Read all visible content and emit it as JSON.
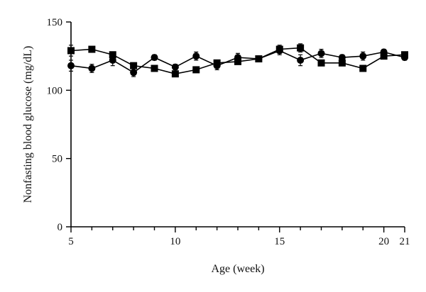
{
  "chart_data": {
    "type": "line",
    "title": "",
    "xlabel": "Age (week)",
    "ylabel": "Nonfasting blood glucose (mg/dL)",
    "xlim": [
      5,
      21
    ],
    "ylim": [
      0,
      150
    ],
    "xticks": [
      5,
      10,
      15,
      20,
      21
    ],
    "yticks": [
      0,
      50,
      100,
      150
    ],
    "grid": false,
    "legend": "none",
    "series": [
      {
        "marker": "square",
        "x": [
          5,
          6,
          7,
          8,
          9,
          10,
          11,
          12,
          13,
          14,
          15,
          16,
          17,
          18,
          19,
          20,
          21
        ],
        "y": [
          129,
          130,
          126,
          118,
          116,
          112,
          115,
          120,
          121,
          123,
          130,
          131,
          120,
          120,
          116,
          125,
          126
        ],
        "err": [
          4,
          2,
          2,
          2,
          2,
          2,
          2,
          2,
          2,
          2,
          3,
          3,
          2,
          2,
          2,
          2,
          2
        ]
      },
      {
        "marker": "circle",
        "x": [
          5,
          6,
          7,
          8,
          9,
          10,
          11,
          12,
          13,
          14,
          15,
          16,
          17,
          18,
          19,
          20,
          21
        ],
        "y": [
          118,
          116,
          122,
          113,
          124,
          117,
          125,
          118,
          124,
          123,
          129,
          122,
          127,
          124,
          125,
          128,
          124
        ],
        "err": [
          4,
          3,
          4,
          3,
          2,
          2,
          3,
          3,
          3,
          2,
          3,
          4,
          3,
          2,
          3,
          2,
          2
        ]
      }
    ]
  }
}
